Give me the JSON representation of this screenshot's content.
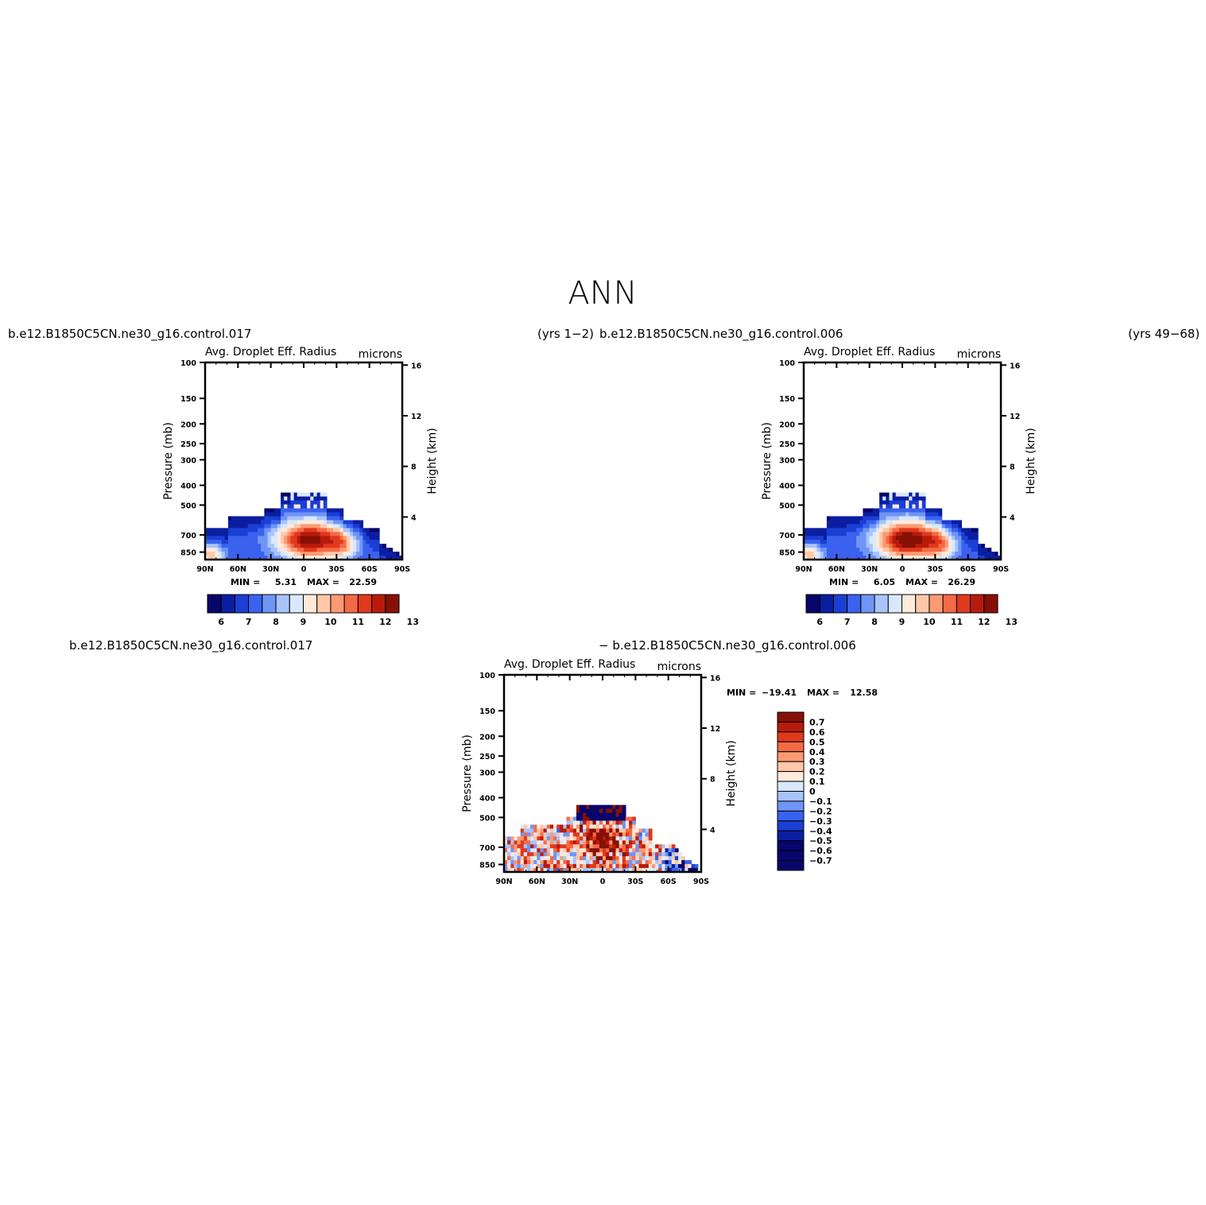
{
  "page": {
    "title": "ANN",
    "left_case": "b.e12.B1850C5CN.ne30_g16.control.017",
    "left_years": "(yrs 1−2)",
    "right_case": "b.e12.B1850C5CN.ne30_g16.control.006",
    "right_years": "(yrs 49−68)",
    "diff_left": "b.e12.B1850C5CN.ne30_g16.control.017",
    "diff_right": "− b.e12.B1850C5CN.ne30_g16.control.006"
  },
  "colors": {
    "abs_palette": [
      "#08066b",
      "#0b1ea0",
      "#1a3fd4",
      "#3a62ee",
      "#6f95f5",
      "#a8c4fb",
      "#d9e8fd",
      "#ffeadb",
      "#ffc8aa",
      "#fc9a73",
      "#f46a45",
      "#e0391c",
      "#b81b0c",
      "#861006"
    ],
    "diff_palette": [
      "#08066b",
      "#0b1ea0",
      "#1a3fd4",
      "#3a62ee",
      "#6f95f5",
      "#a8c4fb",
      "#d9e8fd",
      "#ffeadb",
      "#ffc8aa",
      "#fc9a73",
      "#f46a45",
      "#e0391c",
      "#b81b0c",
      "#861006"
    ]
  },
  "chart_data": [
    {
      "type": "heatmap",
      "id": "left",
      "title": "Avg. Droplet Eff. Radius",
      "units": "microns",
      "xlabel": "",
      "ylabel": "Pressure (mb)",
      "ylabel_right": "Height (km)",
      "x_ticks": [
        "90N",
        "60N",
        "30N",
        "0",
        "30S",
        "60S",
        "90S"
      ],
      "y_ticks": [
        "100",
        "150",
        "200",
        "250",
        "300",
        "400",
        "500",
        "700",
        "850"
      ],
      "y_ticks_right": [
        "16",
        "12",
        "8",
        "4"
      ],
      "stats": {
        "min_label": "MIN =",
        "min": "5.31",
        "max_label": "MAX =",
        "max": "22.59"
      },
      "colorbar_labels": [
        "6",
        "7",
        "8",
        "9",
        "10",
        "11",
        "12",
        "13"
      ],
      "field": {
        "kind": "abs",
        "top_level_mb": 430,
        "core_max": 13.6,
        "core_lat": -5,
        "core_p": 740
      }
    },
    {
      "type": "heatmap",
      "id": "right",
      "title": "Avg. Droplet Eff. Radius",
      "units": "microns",
      "xlabel": "",
      "ylabel": "Pressure (mb)",
      "ylabel_right": "Height (km)",
      "x_ticks": [
        "90N",
        "60N",
        "30N",
        "0",
        "30S",
        "60S",
        "90S"
      ],
      "y_ticks": [
        "100",
        "150",
        "200",
        "250",
        "300",
        "400",
        "500",
        "700",
        "850"
      ],
      "y_ticks_right": [
        "16",
        "12",
        "8",
        "4"
      ],
      "stats": {
        "min_label": "MIN =",
        "min": "6.05",
        "max_label": "MAX =",
        "max": "26.29"
      },
      "colorbar_labels": [
        "6",
        "7",
        "8",
        "9",
        "10",
        "11",
        "12",
        "13"
      ],
      "field": {
        "kind": "abs",
        "top_level_mb": 430,
        "core_max": 13.9,
        "core_lat": -5,
        "core_p": 740
      }
    },
    {
      "type": "heatmap",
      "id": "diff",
      "title": "Avg. Droplet Eff. Radius",
      "units": "microns",
      "xlabel": "",
      "ylabel": "Pressure (mb)",
      "ylabel_right": "Height (km)",
      "x_ticks": [
        "90N",
        "60N",
        "30N",
        "0",
        "30S",
        "60S",
        "90S"
      ],
      "y_ticks": [
        "100",
        "150",
        "200",
        "250",
        "300",
        "400",
        "500",
        "700",
        "850"
      ],
      "y_ticks_right": [
        "16",
        "12",
        "8",
        "4"
      ],
      "stats": {
        "min_label": "MIN =",
        "min": "−19.41",
        "max_label": "MAX =",
        "max": "12.58"
      },
      "colorbar_labels": [
        "0.7",
        "0.6",
        "0.5",
        "0.4",
        "0.3",
        "0.2",
        "0.1",
        "0",
        "−0.1",
        "−0.2",
        "−0.3",
        "−0.4",
        "−0.5",
        "−0.6",
        "−0.7"
      ],
      "field": {
        "kind": "diff",
        "top_level_mb": 430
      }
    }
  ]
}
